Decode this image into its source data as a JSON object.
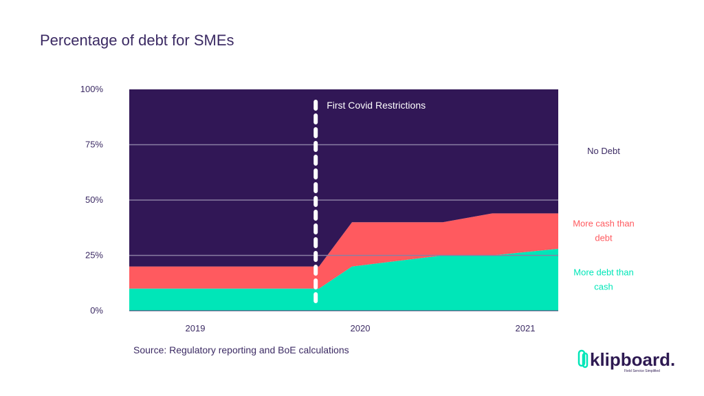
{
  "chart_data": {
    "type": "area",
    "title": "Percentage of debt for SMEs",
    "stacked": true,
    "ylim": [
      0,
      100
    ],
    "yticks": [
      "0%",
      "25%",
      "50%",
      "75%",
      "100%"
    ],
    "ytick_values": [
      0,
      25,
      50,
      75,
      100
    ],
    "xlim": [
      2018.6,
      2021.2
    ],
    "xticks": [
      {
        "label": "2019",
        "value": 2019
      },
      {
        "label": "2020",
        "value": 2020
      },
      {
        "label": "2021",
        "value": 2021
      }
    ],
    "x": [
      2018.6,
      2019.75,
      2019.95,
      2020.5,
      2020.8,
      2021.2
    ],
    "series": [
      {
        "name": "More debt than cash",
        "label_lines": [
          "More debt than",
          "cash"
        ],
        "color": "#00e6b8",
        "values": [
          10,
          10,
          20,
          25,
          25,
          28
        ]
      },
      {
        "name": "More cash than debt",
        "label_lines": [
          "More cash than",
          "debt"
        ],
        "color": "#ff5a5f",
        "values": [
          10,
          10,
          20,
          15,
          19,
          16
        ]
      },
      {
        "name": "No Debt",
        "label_lines": [
          "No Debt"
        ],
        "color": "#311756",
        "values": [
          80,
          80,
          60,
          60,
          56,
          56
        ]
      }
    ],
    "annotation": {
      "text": "First Covid Restrictions",
      "x": 2019.73
    },
    "grid": true,
    "legend": "right"
  },
  "source": "Source: Regulatory reporting and BoE calculations",
  "logo": {
    "text": "klipboard.",
    "tagline": "Field Service Simplified"
  },
  "colors": {
    "text": "#3b2a63",
    "grid": "#8a7fa3"
  }
}
